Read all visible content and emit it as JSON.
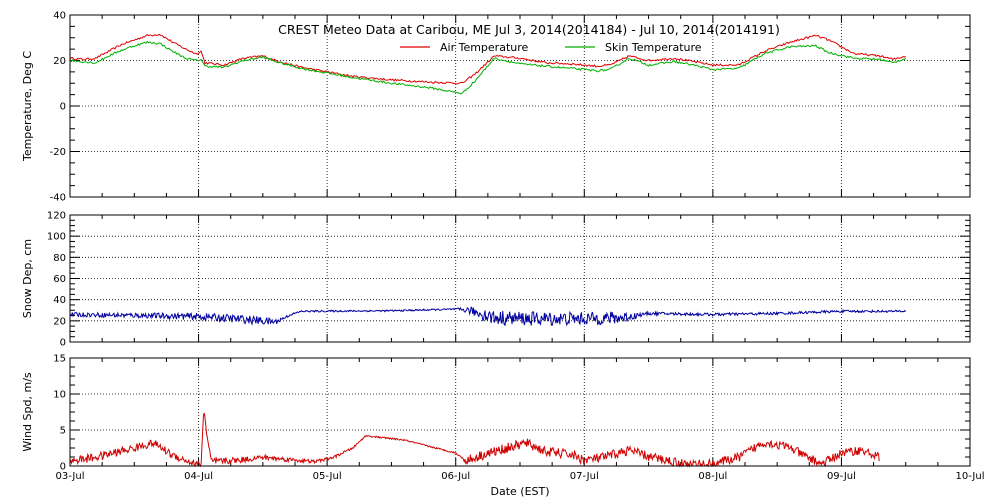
{
  "chart_data": {
    "type": "line",
    "title": "CREST Meteo Data at Caribou, ME   Jul  3, 2014(2014184) - Jul 10, 2014(2014191)",
    "xlabel": "Date (EST)",
    "x_range": [
      "2014-07-03 00:00",
      "2014-07-10 00:00"
    ],
    "x_tick_labels": [
      "03-Jul",
      "04-Jul",
      "05-Jul",
      "06-Jul",
      "07-Jul",
      "08-Jul",
      "09-Jul",
      "10-Jul"
    ],
    "grid": true,
    "colors": {
      "air": "#e00000",
      "skin": "#00b000",
      "snow": "#0000a0",
      "wind": "#d00000"
    },
    "panels": [
      {
        "id": "temperature",
        "ylabel": "Temperature, Deg C",
        "ylim": [
          -40,
          40
        ],
        "yticks": [
          -40,
          -20,
          0,
          20,
          40
        ],
        "legend": "top-center",
        "series": [
          {
            "name": "Air Temperature",
            "color": "#e00000",
            "points": [
              [
                0,
                21
              ],
              [
                0.1,
                20.5
              ],
              [
                0.2,
                21
              ],
              [
                0.3,
                24
              ],
              [
                0.4,
                27
              ],
              [
                0.5,
                29
              ],
              [
                0.6,
                31
              ],
              [
                0.7,
                31.5
              ],
              [
                0.8,
                28
              ],
              [
                0.9,
                25
              ],
              [
                0.98,
                23
              ],
              [
                1.02,
                24
              ],
              [
                1.05,
                19
              ],
              [
                1.2,
                18
              ],
              [
                1.35,
                21
              ],
              [
                1.5,
                22
              ],
              [
                1.6,
                20
              ],
              [
                1.8,
                17
              ],
              [
                2.0,
                15
              ],
              [
                2.2,
                13
              ],
              [
                2.5,
                11.5
              ],
              [
                2.8,
                10.5
              ],
              [
                3.05,
                10
              ],
              [
                3.15,
                14
              ],
              [
                3.3,
                22
              ],
              [
                3.5,
                21
              ],
              [
                3.7,
                19
              ],
              [
                3.9,
                18.5
              ],
              [
                4.1,
                17.5
              ],
              [
                4.2,
                18
              ],
              [
                4.35,
                22
              ],
              [
                4.5,
                20
              ],
              [
                4.7,
                21
              ],
              [
                4.85,
                19.5
              ],
              [
                5.0,
                18
              ],
              [
                5.2,
                18
              ],
              [
                5.4,
                24
              ],
              [
                5.6,
                28
              ],
              [
                5.8,
                31
              ],
              [
                5.9,
                29
              ],
              [
                6.1,
                23
              ],
              [
                6.3,
                22
              ],
              [
                6.4,
                20.5
              ],
              [
                6.5,
                22
              ]
            ]
          },
          {
            "name": "Skin Temperature",
            "color": "#00b000",
            "points": [
              [
                0,
                20
              ],
              [
                0.1,
                19.5
              ],
              [
                0.2,
                19
              ],
              [
                0.3,
                22
              ],
              [
                0.4,
                24.5
              ],
              [
                0.5,
                26.5
              ],
              [
                0.6,
                28
              ],
              [
                0.7,
                27.5
              ],
              [
                0.8,
                24
              ],
              [
                0.9,
                21
              ],
              [
                0.98,
                20
              ],
              [
                1.02,
                20.5
              ],
              [
                1.05,
                17.5
              ],
              [
                1.2,
                17
              ],
              [
                1.35,
                20
              ],
              [
                1.5,
                21.5
              ],
              [
                1.6,
                19.5
              ],
              [
                1.8,
                16.5
              ],
              [
                2.0,
                14.5
              ],
              [
                2.2,
                12.5
              ],
              [
                2.5,
                10
              ],
              [
                2.8,
                8
              ],
              [
                3.05,
                5.5
              ],
              [
                3.15,
                11
              ],
              [
                3.3,
                21
              ],
              [
                3.5,
                18.5
              ],
              [
                3.7,
                17.5
              ],
              [
                3.9,
                16.5
              ],
              [
                4.1,
                15.5
              ],
              [
                4.2,
                16
              ],
              [
                4.35,
                21
              ],
              [
                4.5,
                18
              ],
              [
                4.7,
                19.5
              ],
              [
                4.85,
                18
              ],
              [
                5.0,
                16
              ],
              [
                5.2,
                16.5
              ],
              [
                5.4,
                23
              ],
              [
                5.6,
                26
              ],
              [
                5.8,
                26.5
              ],
              [
                5.9,
                23.5
              ],
              [
                6.1,
                21
              ],
              [
                6.3,
                20.5
              ],
              [
                6.4,
                19
              ],
              [
                6.5,
                21
              ]
            ]
          }
        ]
      },
      {
        "id": "snow",
        "ylabel": "Snow Dep, cm",
        "ylim": [
          0,
          120
        ],
        "yticks": [
          0,
          20,
          40,
          60,
          80,
          100,
          120
        ],
        "series": [
          {
            "name": "",
            "color": "#0000a0",
            "base": [
              [
                0,
                26
              ],
              [
                0.6,
                25
              ],
              [
                1.0,
                24
              ],
              [
                1.3,
                22
              ],
              [
                1.6,
                19
              ],
              [
                1.72,
                26
              ],
              [
                1.8,
                29
              ],
              [
                2.5,
                29.5
              ],
              [
                3.0,
                31
              ],
              [
                3.1,
                30
              ],
              [
                3.3,
                23
              ],
              [
                3.6,
                22
              ],
              [
                4.0,
                22
              ],
              [
                4.3,
                23
              ],
              [
                4.5,
                27
              ],
              [
                5.0,
                26
              ],
              [
                5.5,
                27
              ],
              [
                6.0,
                29
              ],
              [
                6.5,
                29
              ]
            ],
            "noise": [
              [
                0,
                2
              ],
              [
                0.6,
                2.5
              ],
              [
                1.0,
                3.5
              ],
              [
                1.5,
                4
              ],
              [
                1.72,
                0.8
              ],
              [
                3.0,
                0.8
              ],
              [
                3.25,
                7
              ],
              [
                4.3,
                6
              ],
              [
                4.45,
                1.5
              ],
              [
                6.5,
                1
              ]
            ]
          }
        ]
      },
      {
        "id": "wind",
        "ylabel": "Wind Spd, m/s",
        "ylim": [
          0,
          15
        ],
        "yticks": [
          0,
          5,
          10,
          15
        ],
        "series": [
          {
            "name": "",
            "color": "#d00000",
            "base": [
              [
                0,
                0.7
              ],
              [
                0.2,
                1.2
              ],
              [
                0.5,
                2.5
              ],
              [
                0.65,
                3.2
              ],
              [
                0.8,
                1.5
              ],
              [
                0.98,
                0.2
              ],
              [
                1.02,
                0.3
              ],
              [
                1.04,
                8
              ],
              [
                1.07,
                3.5
              ],
              [
                1.1,
                0.6
              ],
              [
                1.3,
                0.8
              ],
              [
                1.5,
                1.2
              ],
              [
                1.7,
                0.9
              ],
              [
                1.9,
                0.6
              ],
              [
                2.05,
                1.2
              ],
              [
                2.2,
                2.5
              ],
              [
                2.3,
                4.2
              ],
              [
                2.6,
                3.6
              ],
              [
                3.0,
                1.8
              ],
              [
                3.08,
                0.7
              ],
              [
                3.2,
                1.5
              ],
              [
                3.4,
                2.5
              ],
              [
                3.55,
                3.2
              ],
              [
                3.7,
                2
              ],
              [
                3.9,
                1.6
              ],
              [
                4.0,
                0.8
              ],
              [
                4.15,
                1.2
              ],
              [
                4.35,
                2.2
              ],
              [
                4.5,
                1.3
              ],
              [
                4.7,
                0.6
              ],
              [
                4.8,
                0.2
              ],
              [
                5.0,
                0.3
              ],
              [
                5.2,
                1.2
              ],
              [
                5.4,
                3.3
              ],
              [
                5.6,
                2.6
              ],
              [
                5.7,
                1.5
              ],
              [
                5.85,
                0.3
              ],
              [
                6.0,
                1.8
              ],
              [
                6.15,
                2.2
              ],
              [
                6.3,
                1.2
              ]
            ],
            "noise": [
              [
                0,
                0.6
              ],
              [
                1.0,
                0.5
              ],
              [
                1.1,
                0.5
              ],
              [
                2.3,
                0.1
              ],
              [
                3.05,
                0.1
              ],
              [
                3.1,
                0.7
              ],
              [
                6.3,
                0.6
              ]
            ]
          }
        ]
      }
    ]
  }
}
